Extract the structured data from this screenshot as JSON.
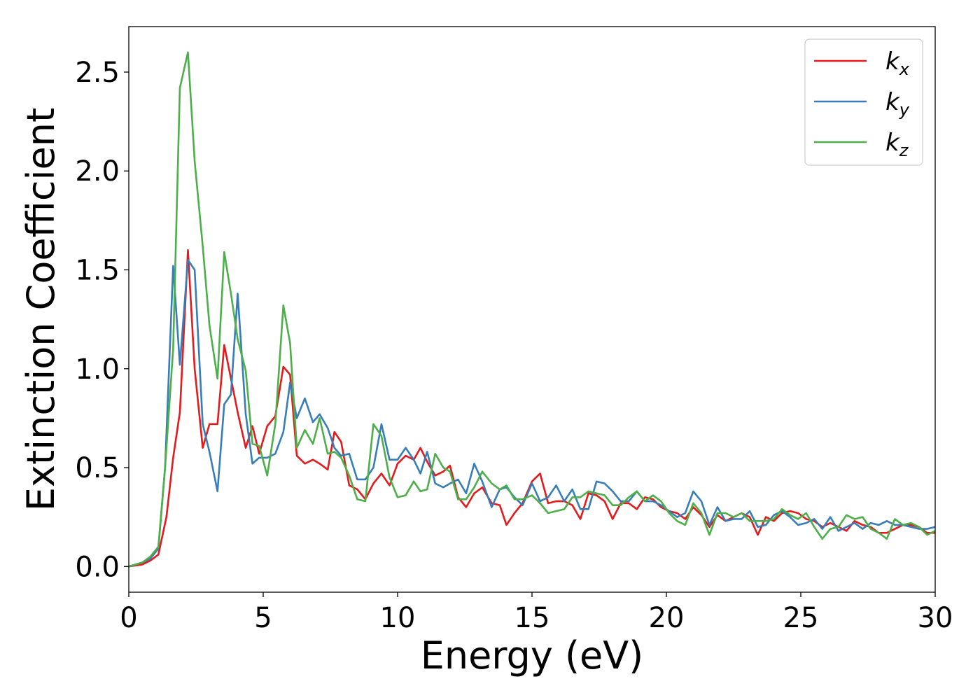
{
  "chart_data": {
    "type": "line",
    "title": "",
    "xlabel": "Energy (eV)",
    "ylabel": "Extinction Coefficient",
    "xlim": [
      0,
      30
    ],
    "ylim": [
      -0.13,
      2.73
    ],
    "xticks": [
      0,
      5,
      10,
      15,
      20,
      25,
      30
    ],
    "xtick_labels": [
      "0",
      "5",
      "10",
      "15",
      "20",
      "25",
      "30"
    ],
    "yticks": [
      0.0,
      0.5,
      1.0,
      1.5,
      2.0,
      2.5
    ],
    "ytick_labels": [
      "0.0",
      "0.5",
      "1.0",
      "1.5",
      "2.0",
      "2.5"
    ],
    "grid": false,
    "legend_position": "top-right",
    "series": [
      {
        "name": "k",
        "subscript": "x",
        "color": "#e41a1c",
        "points": [
          [
            0,
            0
          ],
          [
            0.5,
            0.01
          ],
          [
            0.8,
            0.03
          ],
          [
            1.1,
            0.06
          ],
          [
            1.4,
            0.25
          ],
          [
            1.65,
            0.55
          ],
          [
            1.9,
            0.78
          ],
          [
            2.2,
            1.6
          ],
          [
            2.45,
            1.0
          ],
          [
            2.75,
            0.6
          ],
          [
            3.0,
            0.72
          ],
          [
            3.3,
            0.72
          ],
          [
            3.55,
            1.12
          ],
          [
            3.8,
            0.95
          ],
          [
            4.05,
            0.78
          ],
          [
            4.35,
            0.6
          ],
          [
            4.6,
            0.71
          ],
          [
            4.85,
            0.57
          ],
          [
            5.15,
            0.71
          ],
          [
            5.45,
            0.76
          ],
          [
            5.75,
            1.01
          ],
          [
            6.0,
            0.97
          ],
          [
            6.25,
            0.56
          ],
          [
            6.55,
            0.52
          ],
          [
            6.85,
            0.54
          ],
          [
            7.1,
            0.52
          ],
          [
            7.4,
            0.49
          ],
          [
            7.65,
            0.68
          ],
          [
            7.9,
            0.63
          ],
          [
            8.2,
            0.41
          ],
          [
            8.5,
            0.39
          ],
          [
            8.8,
            0.34
          ],
          [
            9.1,
            0.42
          ],
          [
            9.4,
            0.47
          ],
          [
            9.7,
            0.41
          ],
          [
            10.0,
            0.52
          ],
          [
            10.3,
            0.56
          ],
          [
            10.6,
            0.54
          ],
          [
            10.85,
            0.6
          ],
          [
            11.1,
            0.53
          ],
          [
            11.4,
            0.46
          ],
          [
            11.7,
            0.48
          ],
          [
            11.95,
            0.51
          ],
          [
            12.25,
            0.35
          ],
          [
            12.55,
            0.3
          ],
          [
            12.85,
            0.37
          ],
          [
            13.15,
            0.4
          ],
          [
            13.5,
            0.32
          ],
          [
            13.8,
            0.31
          ],
          [
            14.05,
            0.21
          ],
          [
            14.35,
            0.27
          ],
          [
            14.65,
            0.32
          ],
          [
            15.0,
            0.43
          ],
          [
            15.3,
            0.47
          ],
          [
            15.6,
            0.32
          ],
          [
            15.9,
            0.33
          ],
          [
            16.2,
            0.33
          ],
          [
            16.5,
            0.31
          ],
          [
            16.8,
            0.24
          ],
          [
            17.1,
            0.37
          ],
          [
            17.4,
            0.36
          ],
          [
            17.7,
            0.33
          ],
          [
            18.0,
            0.24
          ],
          [
            18.3,
            0.32
          ],
          [
            18.6,
            0.32
          ],
          [
            18.9,
            0.29
          ],
          [
            19.2,
            0.35
          ],
          [
            19.5,
            0.34
          ],
          [
            19.8,
            0.3
          ],
          [
            20.1,
            0.28
          ],
          [
            20.4,
            0.27
          ],
          [
            20.7,
            0.24
          ],
          [
            21.0,
            0.3
          ],
          [
            21.3,
            0.26
          ],
          [
            21.6,
            0.2
          ],
          [
            21.9,
            0.26
          ],
          [
            22.2,
            0.23
          ],
          [
            22.5,
            0.25
          ],
          [
            22.8,
            0.27
          ],
          [
            23.1,
            0.25
          ],
          [
            23.4,
            0.16
          ],
          [
            23.7,
            0.25
          ],
          [
            24.0,
            0.23
          ],
          [
            24.3,
            0.27
          ],
          [
            24.6,
            0.28
          ],
          [
            24.9,
            0.27
          ],
          [
            25.2,
            0.24
          ],
          [
            25.5,
            0.23
          ],
          [
            25.8,
            0.2
          ],
          [
            26.1,
            0.22
          ],
          [
            26.4,
            0.2
          ],
          [
            26.7,
            0.18
          ],
          [
            27.0,
            0.23
          ],
          [
            27.3,
            0.21
          ],
          [
            27.6,
            0.2
          ],
          [
            27.9,
            0.17
          ],
          [
            28.2,
            0.17
          ],
          [
            28.5,
            0.19
          ],
          [
            28.8,
            0.21
          ],
          [
            29.1,
            0.21
          ],
          [
            29.4,
            0.2
          ],
          [
            29.7,
            0.17
          ],
          [
            30.0,
            0.17
          ]
        ]
      },
      {
        "name": "k",
        "subscript": "y",
        "color": "#377eb8",
        "points": [
          [
            0,
            0
          ],
          [
            0.5,
            0.02
          ],
          [
            0.8,
            0.04
          ],
          [
            1.1,
            0.09
          ],
          [
            1.35,
            0.5
          ],
          [
            1.65,
            1.52
          ],
          [
            1.9,
            1.02
          ],
          [
            2.2,
            1.55
          ],
          [
            2.45,
            1.5
          ],
          [
            2.75,
            0.72
          ],
          [
            3.0,
            0.58
          ],
          [
            3.3,
            0.38
          ],
          [
            3.55,
            0.82
          ],
          [
            3.8,
            0.87
          ],
          [
            4.05,
            1.38
          ],
          [
            4.35,
            0.77
          ],
          [
            4.6,
            0.52
          ],
          [
            4.85,
            0.55
          ],
          [
            5.15,
            0.55
          ],
          [
            5.45,
            0.57
          ],
          [
            5.75,
            0.68
          ],
          [
            6.0,
            0.93
          ],
          [
            6.25,
            0.75
          ],
          [
            6.55,
            0.85
          ],
          [
            6.85,
            0.73
          ],
          [
            7.1,
            0.77
          ],
          [
            7.4,
            0.7
          ],
          [
            7.65,
            0.6
          ],
          [
            7.9,
            0.56
          ],
          [
            8.2,
            0.57
          ],
          [
            8.5,
            0.44
          ],
          [
            8.8,
            0.44
          ],
          [
            9.1,
            0.5
          ],
          [
            9.4,
            0.72
          ],
          [
            9.7,
            0.54
          ],
          [
            10.0,
            0.54
          ],
          [
            10.3,
            0.6
          ],
          [
            10.6,
            0.54
          ],
          [
            10.85,
            0.47
          ],
          [
            11.1,
            0.58
          ],
          [
            11.4,
            0.42
          ],
          [
            11.7,
            0.4
          ],
          [
            11.95,
            0.42
          ],
          [
            12.25,
            0.44
          ],
          [
            12.55,
            0.37
          ],
          [
            12.85,
            0.52
          ],
          [
            13.15,
            0.43
          ],
          [
            13.5,
            0.3
          ],
          [
            13.8,
            0.39
          ],
          [
            14.05,
            0.4
          ],
          [
            14.35,
            0.35
          ],
          [
            14.65,
            0.31
          ],
          [
            15.0,
            0.42
          ],
          [
            15.3,
            0.33
          ],
          [
            15.6,
            0.35
          ],
          [
            15.9,
            0.41
          ],
          [
            16.2,
            0.33
          ],
          [
            16.5,
            0.39
          ],
          [
            16.8,
            0.29
          ],
          [
            17.1,
            0.29
          ],
          [
            17.4,
            0.43
          ],
          [
            17.7,
            0.42
          ],
          [
            18.0,
            0.38
          ],
          [
            18.3,
            0.33
          ],
          [
            18.6,
            0.33
          ],
          [
            18.9,
            0.38
          ],
          [
            19.2,
            0.33
          ],
          [
            19.5,
            0.33
          ],
          [
            19.8,
            0.31
          ],
          [
            20.1,
            0.28
          ],
          [
            20.4,
            0.25
          ],
          [
            20.7,
            0.27
          ],
          [
            21.0,
            0.38
          ],
          [
            21.3,
            0.33
          ],
          [
            21.6,
            0.21
          ],
          [
            21.9,
            0.3
          ],
          [
            22.2,
            0.23
          ],
          [
            22.5,
            0.24
          ],
          [
            22.8,
            0.24
          ],
          [
            23.1,
            0.28
          ],
          [
            23.4,
            0.2
          ],
          [
            23.7,
            0.21
          ],
          [
            24.0,
            0.26
          ],
          [
            24.3,
            0.28
          ],
          [
            24.6,
            0.25
          ],
          [
            24.9,
            0.21
          ],
          [
            25.2,
            0.22
          ],
          [
            25.5,
            0.24
          ],
          [
            25.8,
            0.19
          ],
          [
            26.1,
            0.25
          ],
          [
            26.4,
            0.18
          ],
          [
            26.7,
            0.2
          ],
          [
            27.0,
            0.22
          ],
          [
            27.3,
            0.19
          ],
          [
            27.6,
            0.22
          ],
          [
            27.9,
            0.21
          ],
          [
            28.2,
            0.23
          ],
          [
            28.5,
            0.21
          ],
          [
            28.8,
            0.21
          ],
          [
            29.1,
            0.2
          ],
          [
            29.4,
            0.19
          ],
          [
            29.7,
            0.19
          ],
          [
            30.0,
            0.2
          ]
        ]
      },
      {
        "name": "k",
        "subscript": "z",
        "color": "#4daf4a",
        "points": [
          [
            0,
            0
          ],
          [
            0.5,
            0.02
          ],
          [
            0.8,
            0.05
          ],
          [
            1.1,
            0.1
          ],
          [
            1.35,
            0.5
          ],
          [
            1.65,
            1.1
          ],
          [
            1.9,
            2.42
          ],
          [
            2.2,
            2.6
          ],
          [
            2.45,
            2.05
          ],
          [
            2.75,
            1.62
          ],
          [
            3.0,
            1.22
          ],
          [
            3.3,
            0.95
          ],
          [
            3.55,
            1.59
          ],
          [
            3.8,
            1.38
          ],
          [
            4.05,
            1.15
          ],
          [
            4.35,
            0.99
          ],
          [
            4.6,
            0.62
          ],
          [
            4.85,
            0.61
          ],
          [
            5.15,
            0.46
          ],
          [
            5.45,
            0.72
          ],
          [
            5.75,
            1.32
          ],
          [
            6.0,
            1.13
          ],
          [
            6.25,
            0.6
          ],
          [
            6.55,
            0.69
          ],
          [
            6.85,
            0.62
          ],
          [
            7.1,
            0.75
          ],
          [
            7.4,
            0.57
          ],
          [
            7.65,
            0.58
          ],
          [
            7.9,
            0.55
          ],
          [
            8.2,
            0.46
          ],
          [
            8.5,
            0.34
          ],
          [
            8.8,
            0.33
          ],
          [
            9.1,
            0.72
          ],
          [
            9.4,
            0.66
          ],
          [
            9.7,
            0.45
          ],
          [
            10.0,
            0.35
          ],
          [
            10.3,
            0.36
          ],
          [
            10.6,
            0.43
          ],
          [
            10.85,
            0.38
          ],
          [
            11.1,
            0.39
          ],
          [
            11.4,
            0.57
          ],
          [
            11.7,
            0.5
          ],
          [
            11.95,
            0.48
          ],
          [
            12.25,
            0.34
          ],
          [
            12.55,
            0.34
          ],
          [
            12.85,
            0.4
          ],
          [
            13.15,
            0.48
          ],
          [
            13.5,
            0.42
          ],
          [
            13.8,
            0.39
          ],
          [
            14.05,
            0.41
          ],
          [
            14.35,
            0.34
          ],
          [
            14.65,
            0.34
          ],
          [
            15.0,
            0.36
          ],
          [
            15.3,
            0.32
          ],
          [
            15.6,
            0.27
          ],
          [
            15.9,
            0.28
          ],
          [
            16.2,
            0.29
          ],
          [
            16.5,
            0.35
          ],
          [
            16.8,
            0.35
          ],
          [
            17.1,
            0.38
          ],
          [
            17.4,
            0.37
          ],
          [
            17.7,
            0.36
          ],
          [
            18.0,
            0.31
          ],
          [
            18.3,
            0.31
          ],
          [
            18.6,
            0.35
          ],
          [
            18.9,
            0.38
          ],
          [
            19.2,
            0.33
          ],
          [
            19.5,
            0.36
          ],
          [
            19.8,
            0.33
          ],
          [
            20.1,
            0.27
          ],
          [
            20.4,
            0.23
          ],
          [
            20.7,
            0.21
          ],
          [
            21.0,
            0.32
          ],
          [
            21.3,
            0.27
          ],
          [
            21.6,
            0.16
          ],
          [
            21.9,
            0.27
          ],
          [
            22.2,
            0.27
          ],
          [
            22.5,
            0.25
          ],
          [
            22.8,
            0.27
          ],
          [
            23.1,
            0.23
          ],
          [
            23.4,
            0.23
          ],
          [
            23.7,
            0.23
          ],
          [
            24.0,
            0.24
          ],
          [
            24.3,
            0.29
          ],
          [
            24.6,
            0.26
          ],
          [
            24.9,
            0.24
          ],
          [
            25.2,
            0.27
          ],
          [
            25.5,
            0.2
          ],
          [
            25.8,
            0.14
          ],
          [
            26.1,
            0.19
          ],
          [
            26.4,
            0.2
          ],
          [
            26.7,
            0.26
          ],
          [
            27.0,
            0.24
          ],
          [
            27.3,
            0.25
          ],
          [
            27.6,
            0.19
          ],
          [
            27.9,
            0.17
          ],
          [
            28.2,
            0.14
          ],
          [
            28.5,
            0.24
          ],
          [
            28.8,
            0.21
          ],
          [
            29.1,
            0.22
          ],
          [
            29.4,
            0.2
          ],
          [
            29.7,
            0.16
          ],
          [
            30.0,
            0.18
          ]
        ]
      }
    ]
  }
}
